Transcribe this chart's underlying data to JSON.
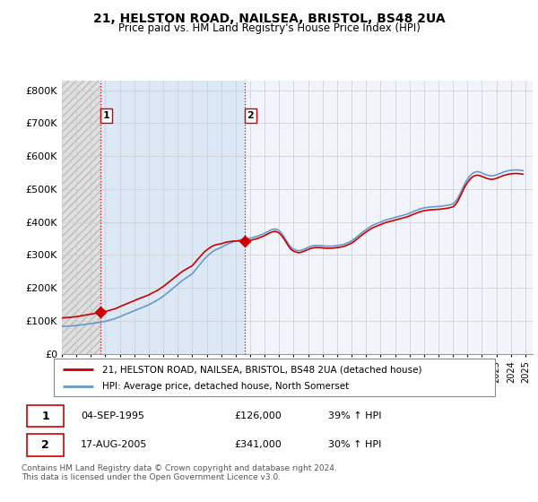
{
  "title": "21, HELSTON ROAD, NAILSEA, BRISTOL, BS48 2UA",
  "subtitle": "Price paid vs. HM Land Registry's House Price Index (HPI)",
  "ylabel_ticks": [
    "£0",
    "£100K",
    "£200K",
    "£300K",
    "£400K",
    "£500K",
    "£600K",
    "£700K",
    "£800K"
  ],
  "ytick_values": [
    0,
    100000,
    200000,
    300000,
    400000,
    500000,
    600000,
    700000,
    800000
  ],
  "ylim": [
    0,
    830000
  ],
  "xlim_start": 1993.0,
  "xlim_end": 2025.5,
  "background_color": "#ffffff",
  "grid_color": "#cccccc",
  "hatch_color": "#bbbbbb",
  "left_bg_color": "#dddddd",
  "mid_bg_color": "#dce8f5",
  "right_bg_color": "#dce8f5",
  "hpi_color": "#6699cc",
  "house_color": "#cc0000",
  "legend_label_house": "21, HELSTON ROAD, NAILSEA, BRISTOL, BS48 2UA (detached house)",
  "legend_label_hpi": "HPI: Average price, detached house, North Somerset",
  "transaction1_date": "04-SEP-1995",
  "transaction1_price": "£126,000",
  "transaction1_hpi": "39% ↑ HPI",
  "transaction1_year": 1995.67,
  "transaction1_value": 126000,
  "transaction2_date": "17-AUG-2005",
  "transaction2_price": "£341,000",
  "transaction2_hpi": "30% ↑ HPI",
  "transaction2_year": 2005.62,
  "transaction2_value": 341000,
  "footnote": "Contains HM Land Registry data © Crown copyright and database right 2024.\nThis data is licensed under the Open Government Licence v3.0.",
  "hpi_years": [
    1993.0,
    1993.17,
    1993.33,
    1993.5,
    1993.67,
    1993.83,
    1994.0,
    1994.17,
    1994.33,
    1994.5,
    1994.67,
    1994.83,
    1995.0,
    1995.17,
    1995.33,
    1995.5,
    1995.67,
    1995.83,
    1996.0,
    1996.17,
    1996.33,
    1996.5,
    1996.67,
    1996.83,
    1997.0,
    1997.17,
    1997.33,
    1997.5,
    1997.67,
    1997.83,
    1998.0,
    1998.17,
    1998.33,
    1998.5,
    1998.67,
    1998.83,
    1999.0,
    1999.17,
    1999.33,
    1999.5,
    1999.67,
    1999.83,
    2000.0,
    2000.17,
    2000.33,
    2000.5,
    2000.67,
    2000.83,
    2001.0,
    2001.17,
    2001.33,
    2001.5,
    2001.67,
    2001.83,
    2002.0,
    2002.17,
    2002.33,
    2002.5,
    2002.67,
    2002.83,
    2003.0,
    2003.17,
    2003.33,
    2003.5,
    2003.67,
    2003.83,
    2004.0,
    2004.17,
    2004.33,
    2004.5,
    2004.67,
    2004.83,
    2005.0,
    2005.17,
    2005.33,
    2005.5,
    2005.67,
    2005.83,
    2006.0,
    2006.17,
    2006.33,
    2006.5,
    2006.67,
    2006.83,
    2007.0,
    2007.17,
    2007.33,
    2007.5,
    2007.67,
    2007.83,
    2008.0,
    2008.17,
    2008.33,
    2008.5,
    2008.67,
    2008.83,
    2009.0,
    2009.17,
    2009.33,
    2009.5,
    2009.67,
    2009.83,
    2010.0,
    2010.17,
    2010.33,
    2010.5,
    2010.67,
    2010.83,
    2011.0,
    2011.17,
    2011.33,
    2011.5,
    2011.67,
    2011.83,
    2012.0,
    2012.17,
    2012.33,
    2012.5,
    2012.67,
    2012.83,
    2013.0,
    2013.17,
    2013.33,
    2013.5,
    2013.67,
    2013.83,
    2014.0,
    2014.17,
    2014.33,
    2014.5,
    2014.67,
    2014.83,
    2015.0,
    2015.17,
    2015.33,
    2015.5,
    2015.67,
    2015.83,
    2016.0,
    2016.17,
    2016.33,
    2016.5,
    2016.67,
    2016.83,
    2017.0,
    2017.17,
    2017.33,
    2017.5,
    2017.67,
    2017.83,
    2018.0,
    2018.17,
    2018.33,
    2018.5,
    2018.67,
    2018.83,
    2019.0,
    2019.17,
    2019.33,
    2019.5,
    2019.67,
    2019.83,
    2020.0,
    2020.17,
    2020.33,
    2020.5,
    2020.67,
    2020.83,
    2021.0,
    2021.17,
    2021.33,
    2021.5,
    2021.67,
    2021.83,
    2022.0,
    2022.17,
    2022.33,
    2022.5,
    2022.67,
    2022.83,
    2023.0,
    2023.17,
    2023.33,
    2023.5,
    2023.67,
    2023.83,
    2024.0,
    2024.17,
    2024.33,
    2024.5,
    2024.67,
    2024.83
  ],
  "hpi_values": [
    83000,
    83500,
    84000,
    84500,
    85000,
    85500,
    86000,
    87000,
    88000,
    89000,
    90000,
    91000,
    92000,
    93000,
    94000,
    95000,
    96000,
    97500,
    99000,
    101000,
    103000,
    105000,
    107000,
    110000,
    113000,
    116000,
    119000,
    122000,
    125000,
    128000,
    131000,
    134000,
    137000,
    140000,
    143000,
    146000,
    149000,
    153000,
    157000,
    161000,
    165000,
    170000,
    175000,
    181000,
    187000,
    193000,
    199000,
    205000,
    211000,
    217000,
    223000,
    228000,
    233000,
    238000,
    243000,
    252000,
    261000,
    270000,
    279000,
    288000,
    295000,
    302000,
    308000,
    313000,
    317000,
    320000,
    323000,
    327000,
    331000,
    334000,
    337000,
    340000,
    342000,
    344000,
    346000,
    347000,
    348000,
    349000,
    351000,
    353000,
    355000,
    357000,
    360000,
    363000,
    366000,
    370000,
    374000,
    377000,
    379000,
    378000,
    374000,
    366000,
    356000,
    344000,
    332000,
    323000,
    318000,
    315000,
    313000,
    314000,
    317000,
    320000,
    323000,
    326000,
    328000,
    329000,
    329000,
    329000,
    328000,
    327000,
    327000,
    327000,
    327000,
    328000,
    329000,
    330000,
    331000,
    333000,
    336000,
    339000,
    343000,
    348000,
    354000,
    360000,
    366000,
    372000,
    377000,
    382000,
    387000,
    391000,
    394000,
    397000,
    400000,
    403000,
    406000,
    408000,
    410000,
    412000,
    414000,
    416000,
    418000,
    420000,
    422000,
    424000,
    427000,
    430000,
    433000,
    436000,
    439000,
    441000,
    443000,
    444000,
    445000,
    446000,
    446000,
    447000,
    447000,
    448000,
    449000,
    450000,
    451000,
    453000,
    455000,
    462000,
    472000,
    487000,
    503000,
    518000,
    530000,
    540000,
    547000,
    551000,
    553000,
    552000,
    549000,
    546000,
    543000,
    541000,
    540000,
    541000,
    543000,
    546000,
    549000,
    552000,
    554000,
    556000,
    557000,
    558000,
    558000,
    558000,
    557000,
    556000
  ],
  "xtick_years": [
    1993,
    1994,
    1995,
    1996,
    1997,
    1998,
    1999,
    2000,
    2001,
    2002,
    2003,
    2004,
    2005,
    2006,
    2007,
    2008,
    2009,
    2010,
    2011,
    2012,
    2013,
    2014,
    2015,
    2016,
    2017,
    2018,
    2019,
    2020,
    2021,
    2022,
    2023,
    2024,
    2025
  ]
}
